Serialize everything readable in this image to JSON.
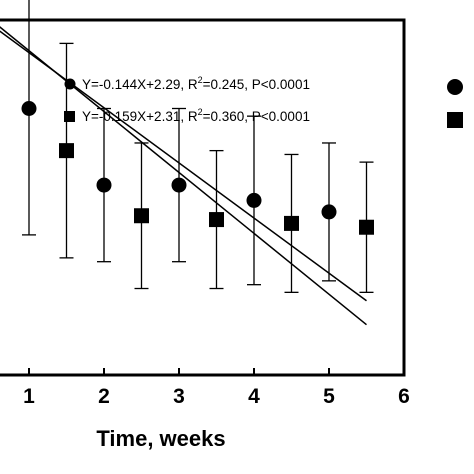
{
  "chart_data": {
    "type": "scatter",
    "xlabel": "Time, weeks",
    "x_ticks": [
      "1",
      "2",
      "3",
      "4",
      "5",
      "6"
    ],
    "xlim": [
      1,
      6
    ],
    "ylim": [
      1.3,
      2.6
    ],
    "annotations": [
      {
        "marker": "circle",
        "parts": [
          "Y=-0.144X+2.29, R",
          "2",
          "=0.245, P<0.0001"
        ]
      },
      {
        "marker": "square",
        "parts": [
          "Y=-0.159X+2.31, R",
          "2",
          "=0.360, P<0.0001"
        ]
      }
    ],
    "series": [
      {
        "marker": "circle",
        "color": "#000000",
        "points": [
          {
            "x": 1.0,
            "y": 2.0,
            "err": 0.33
          },
          {
            "x": 2.0,
            "y": 1.8,
            "err": 0.2
          },
          {
            "x": 3.0,
            "y": 1.8,
            "err": 0.2
          },
          {
            "x": 4.0,
            "y": 1.76,
            "err": 0.22
          },
          {
            "x": 5.0,
            "y": 1.73,
            "err": 0.18
          }
        ],
        "fit": {
          "slope": -0.144,
          "intercept": 2.29
        }
      },
      {
        "marker": "square",
        "color": "#000000",
        "points": [
          {
            "x": 1.5,
            "y": 1.89,
            "err": 0.28
          },
          {
            "x": 2.5,
            "y": 1.72,
            "err": 0.19
          },
          {
            "x": 3.5,
            "y": 1.71,
            "err": 0.18
          },
          {
            "x": 4.5,
            "y": 1.7,
            "err": 0.18
          },
          {
            "x": 5.5,
            "y": 1.69,
            "err": 0.17
          }
        ],
        "fit": {
          "slope": -0.159,
          "intercept": 2.31
        }
      }
    ]
  }
}
